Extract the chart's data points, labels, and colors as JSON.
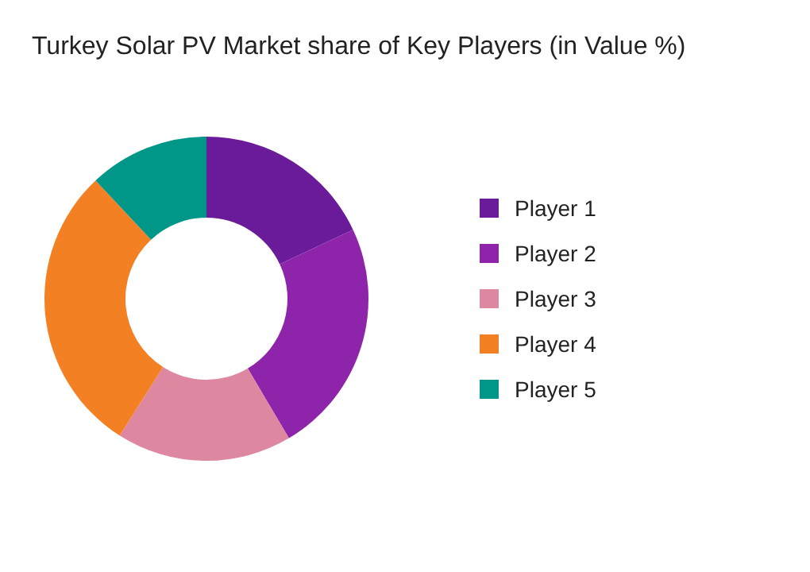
{
  "chart_data": {
    "type": "donut",
    "title": "Turkey Solar PV Market share of Key Players (in Value %)",
    "categories": [
      "Player 1",
      "Player 2",
      "Player 3",
      "Player 4",
      "Player 5"
    ],
    "values": [
      18,
      23.5,
      17.5,
      29,
      12
    ],
    "colors": [
      "#6a1b9a",
      "#8e24aa",
      "#de87a0",
      "#f48024",
      "#009688"
    ],
    "legend": "right"
  }
}
